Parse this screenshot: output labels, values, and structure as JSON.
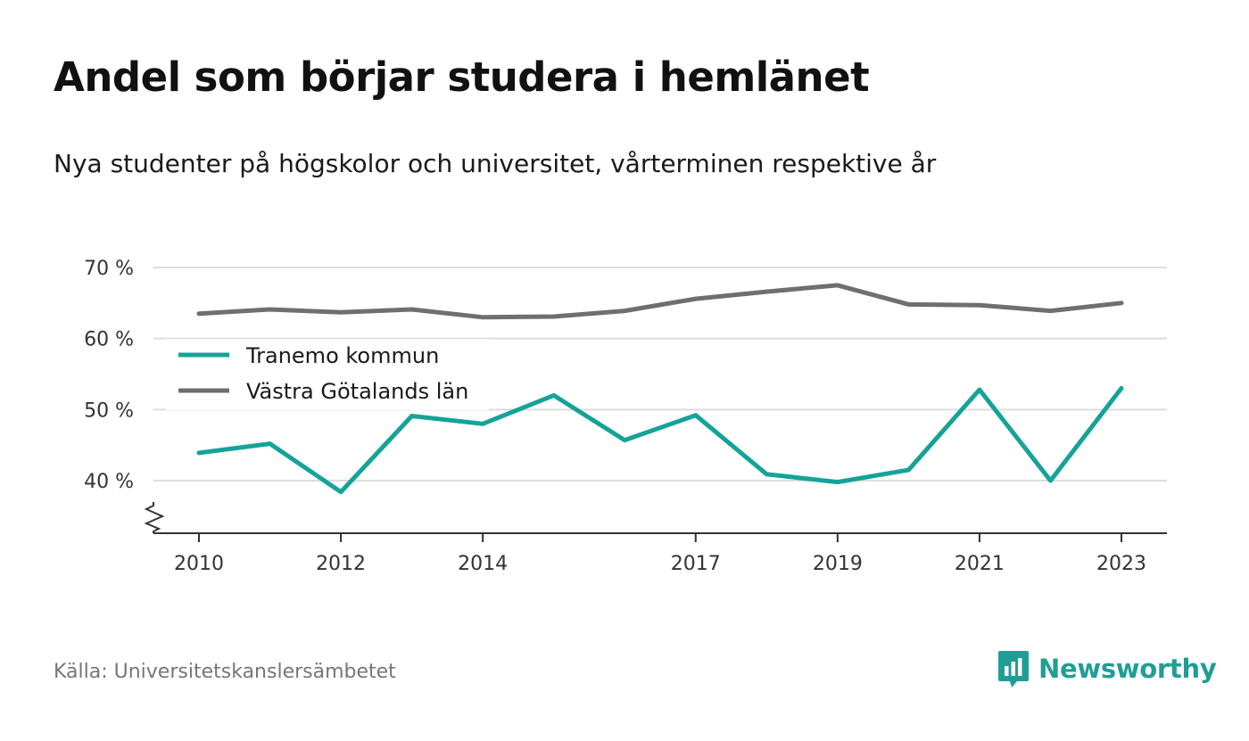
{
  "title": "Andel som börjar studera i hemlänet",
  "subtitle": "Nya studenter på högskolor och universitet, vårterminen respektive år",
  "source": "Källa: Universitetskanslersämbetet",
  "brand": {
    "name": "Newsworthy",
    "logo_icon": "newsworthy-chart-bubble-icon",
    "color": "#1f9e95"
  },
  "chart_data": {
    "type": "line",
    "x": [
      2010,
      2011,
      2012,
      2013,
      2014,
      2015,
      2016,
      2017,
      2018,
      2019,
      2020,
      2021,
      2022,
      2023
    ],
    "x_tick_labels": [
      "2010",
      "2012",
      "2014",
      "2017",
      "2019",
      "2021",
      "2023"
    ],
    "y_unit": "%",
    "y_ticks": [
      40,
      50,
      60,
      70
    ],
    "y_tick_labels": [
      "40 %",
      "50 %",
      "60 %",
      "70 %"
    ],
    "ylim": [
      32.5,
      70
    ],
    "y_axis_break": true,
    "grid": true,
    "legend_position": "top-left",
    "series": [
      {
        "name": "Tranemo kommun",
        "color": "#14a398",
        "values": [
          43.9,
          45.2,
          38.4,
          49.1,
          48.0,
          52.0,
          45.7,
          49.2,
          40.9,
          39.8,
          41.5,
          52.8,
          40.0,
          53.0
        ]
      },
      {
        "name": "Västra Götalands län",
        "color": "#6e6e73",
        "values": [
          63.5,
          64.1,
          63.7,
          64.1,
          63.0,
          63.1,
          63.9,
          65.6,
          66.6,
          67.5,
          64.8,
          64.7,
          63.9,
          65.0
        ]
      }
    ]
  }
}
